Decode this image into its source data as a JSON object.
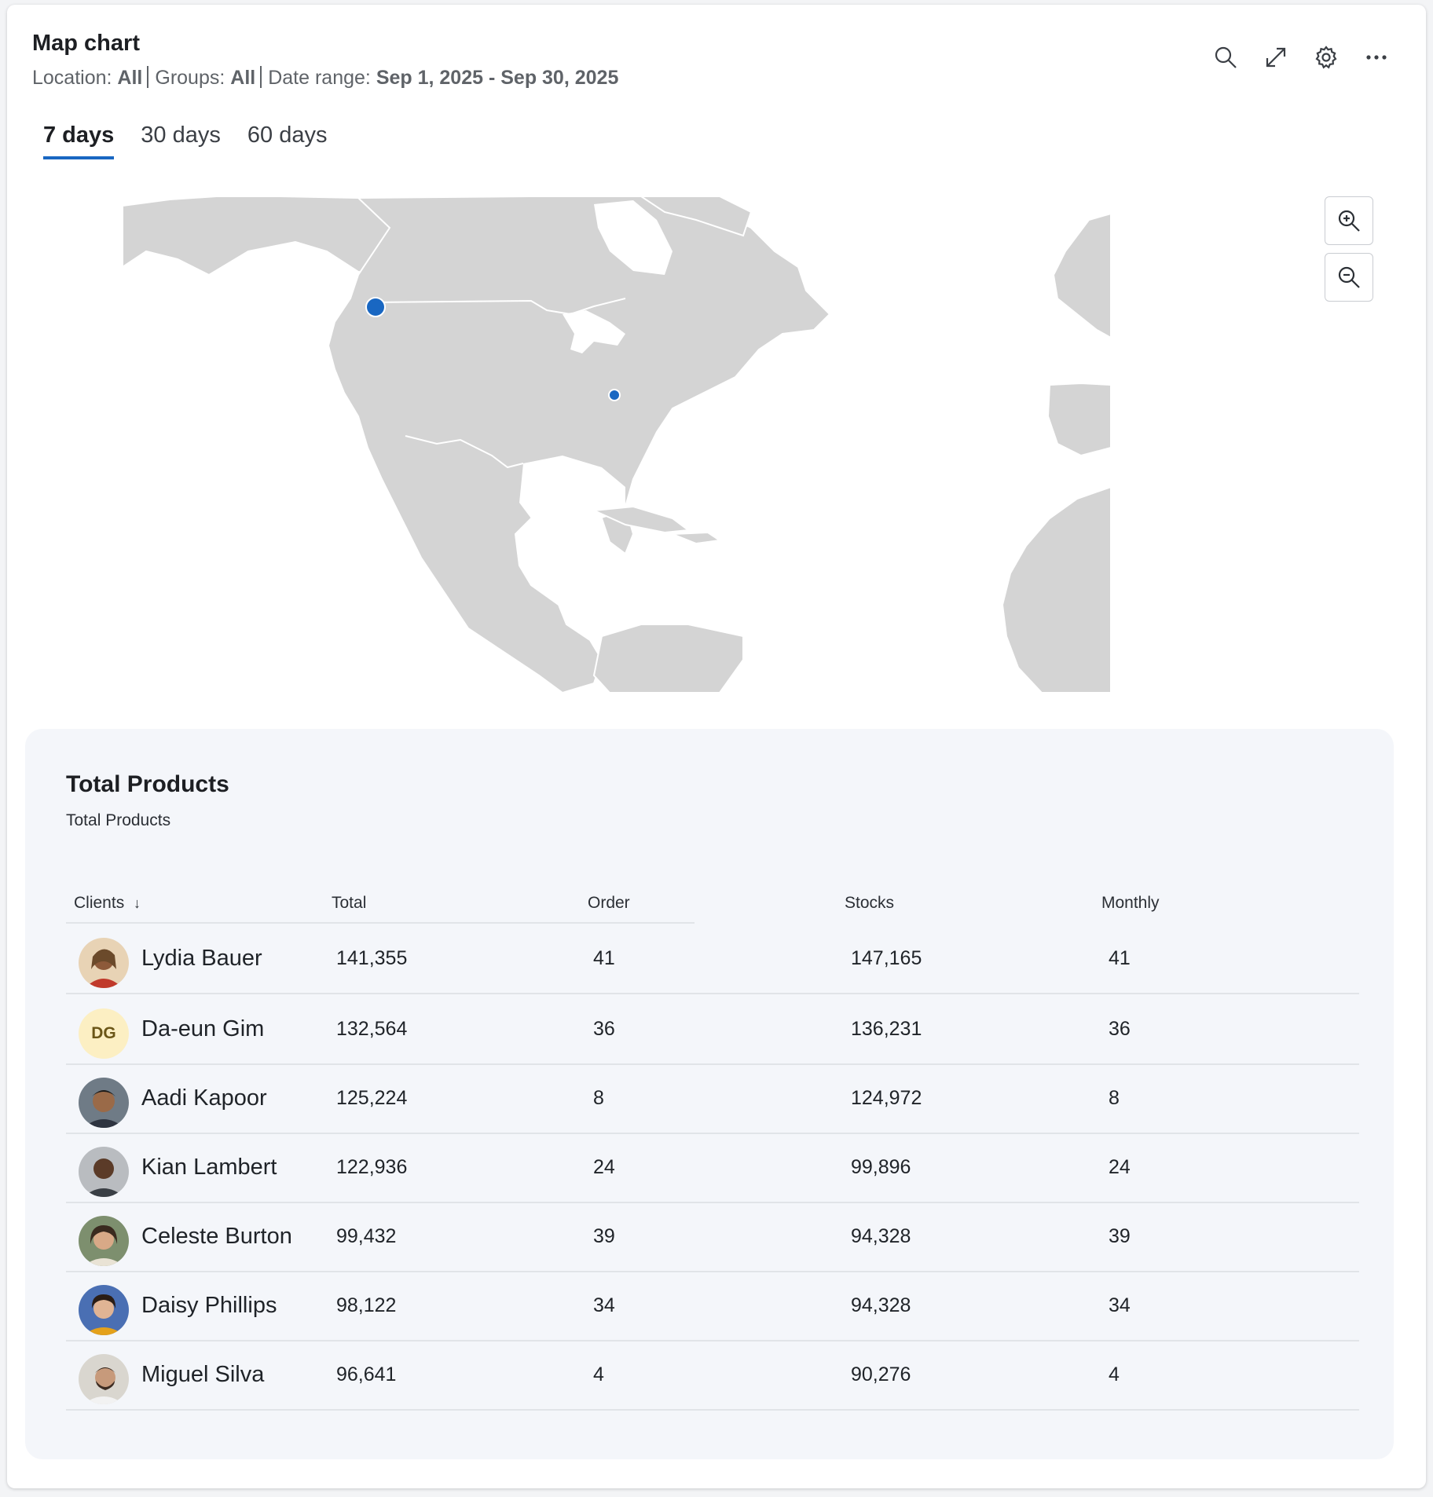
{
  "header": {
    "title": "Map chart",
    "filters": {
      "location_label": "Location:",
      "location_value": "All",
      "groups_label": "Groups:",
      "groups_value": "All",
      "date_label": "Date range:",
      "date_value": "Sep 1, 2025 - Sep 30, 2025"
    },
    "actions": [
      "search-icon",
      "expand-icon",
      "gear-icon",
      "more-icon"
    ]
  },
  "tabs": [
    {
      "label": "7 days",
      "active": true
    },
    {
      "label": "30 days",
      "active": false
    },
    {
      "label": "60 days",
      "active": false
    }
  ],
  "map": {
    "land_color": "#d4d4d4",
    "border_color": "#ffffff",
    "marker_color": "#1967c2",
    "zoom_controls": [
      "zoom-in-icon",
      "zoom-out-icon"
    ]
  },
  "table": {
    "title": "Total Products",
    "subtitle": "Total Products",
    "columns": [
      "Clients",
      "Total",
      "Order",
      "Stocks",
      "Monthly"
    ],
    "sort_indicator": "↓",
    "rows": [
      {
        "name": "Lydia Bauer",
        "total": "141,355",
        "order": "41",
        "stocks": "147,165",
        "monthly": "41"
      },
      {
        "name": "Da-eun Gim",
        "initials": "DG",
        "total": "132,564",
        "order": "36",
        "stocks": "136,231",
        "monthly": "36"
      },
      {
        "name": "Aadi Kapoor",
        "total": "125,224",
        "order": "8",
        "stocks": "124,972",
        "monthly": "8"
      },
      {
        "name": "Kian Lambert",
        "total": "122,936",
        "order": "24",
        "stocks": "99,896",
        "monthly": "24"
      },
      {
        "name": "Celeste Burton",
        "total": "99,432",
        "order": "39",
        "stocks": "94,328",
        "monthly": "39"
      },
      {
        "name": "Daisy Phillips",
        "total": "98,122",
        "order": "34",
        "stocks": "94,328",
        "monthly": "34"
      },
      {
        "name": "Miguel Silva",
        "total": "96,641",
        "order": "4",
        "stocks": "90,276",
        "monthly": "4"
      }
    ]
  }
}
